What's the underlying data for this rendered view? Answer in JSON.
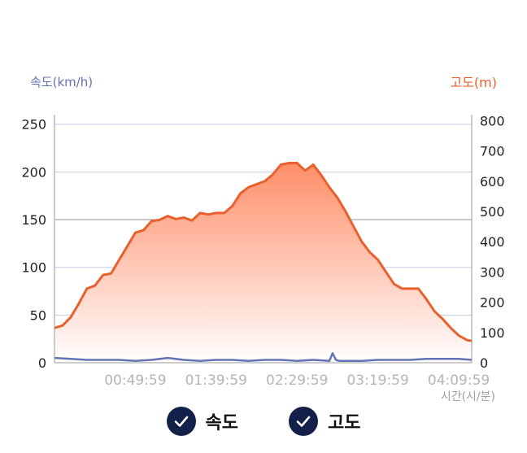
{
  "chart_data": {
    "type": "area",
    "xlabel": "시간(시/분)",
    "x_ticks": [
      "00:49:59",
      "01:39:59",
      "02:29:59",
      "03:19:59",
      "04:09:59"
    ],
    "x_range": [
      "00:00:00",
      "04:18:00"
    ],
    "left_axis": {
      "label": "속도(km/h)",
      "range": [
        0,
        260
      ],
      "ticks": [
        0,
        50,
        100,
        150,
        200,
        250
      ],
      "color": "#6372b4"
    },
    "right_axis": {
      "label": "고도(m)",
      "range": [
        0,
        820
      ],
      "ticks": [
        0,
        100,
        200,
        300,
        400,
        500,
        600,
        700,
        800
      ],
      "color": "#e8612c"
    },
    "grid": true,
    "series": [
      {
        "name": "고도",
        "axis": "right",
        "color": "#e8612c",
        "fill": "gradient",
        "x": [
          "00:00:00",
          "00:05:00",
          "00:10:00",
          "00:15:00",
          "00:20:00",
          "00:25:00",
          "00:30:00",
          "00:35:00",
          "00:40:00",
          "00:45:00",
          "00:50:00",
          "00:55:00",
          "01:00:00",
          "01:05:00",
          "01:10:00",
          "01:15:00",
          "01:20:00",
          "01:25:00",
          "01:30:00",
          "01:35:00",
          "01:40:00",
          "01:45:00",
          "01:50:00",
          "01:55:00",
          "02:00:00",
          "02:05:00",
          "02:10:00",
          "02:15:00",
          "02:20:00",
          "02:25:00",
          "02:30:00",
          "02:35:00",
          "02:40:00",
          "02:45:00",
          "02:50:00",
          "02:55:00",
          "03:00:00",
          "03:05:00",
          "03:10:00",
          "03:15:00",
          "03:20:00",
          "03:25:00",
          "03:30:00",
          "03:35:00",
          "03:40:00",
          "03:45:00",
          "03:50:00",
          "03:55:00",
          "04:00:00",
          "04:05:00",
          "04:10:00",
          "04:15:00",
          "04:18:00"
        ],
        "values": [
          115,
          123,
          150,
          195,
          245,
          255,
          290,
          295,
          340,
          385,
          430,
          438,
          468,
          472,
          485,
          475,
          480,
          470,
          495,
          490,
          495,
          495,
          518,
          560,
          580,
          590,
          600,
          622,
          655,
          660,
          660,
          635,
          655,
          620,
          580,
          545,
          500,
          450,
          400,
          365,
          340,
          300,
          260,
          245,
          245,
          245,
          210,
          170,
          145,
          115,
          90,
          75,
          72
        ]
      },
      {
        "name": "속도",
        "axis": "left",
        "color": "#6372b4",
        "x": [
          "00:00:00",
          "00:10:00",
          "00:20:00",
          "00:30:00",
          "00:40:00",
          "00:50:00",
          "01:00:00",
          "01:10:00",
          "01:20:00",
          "01:30:00",
          "01:40:00",
          "01:50:00",
          "02:00:00",
          "02:10:00",
          "02:20:00",
          "02:30:00",
          "02:40:00",
          "02:50:00",
          "02:52:00",
          "02:54:00",
          "02:56:00",
          "03:00:00",
          "03:10:00",
          "03:20:00",
          "03:30:00",
          "03:40:00",
          "03:50:00",
          "04:00:00",
          "04:10:00",
          "04:18:00"
        ],
        "values": [
          5,
          4,
          3,
          3,
          3,
          2,
          3,
          5,
          3,
          2,
          3,
          3,
          2,
          3,
          3,
          2,
          3,
          2,
          10,
          3,
          2,
          2,
          2,
          3,
          3,
          3,
          4,
          4,
          4,
          3
        ]
      }
    ]
  },
  "legend": {
    "items": [
      {
        "label": "속도",
        "checked": true
      },
      {
        "label": "고도",
        "checked": true
      }
    ]
  },
  "colors": {
    "speed": "#6372b4",
    "elevation": "#e8612c",
    "checkbox": "#12204a",
    "grid": "#c5cee3",
    "grid_dark": "#8f939b"
  }
}
